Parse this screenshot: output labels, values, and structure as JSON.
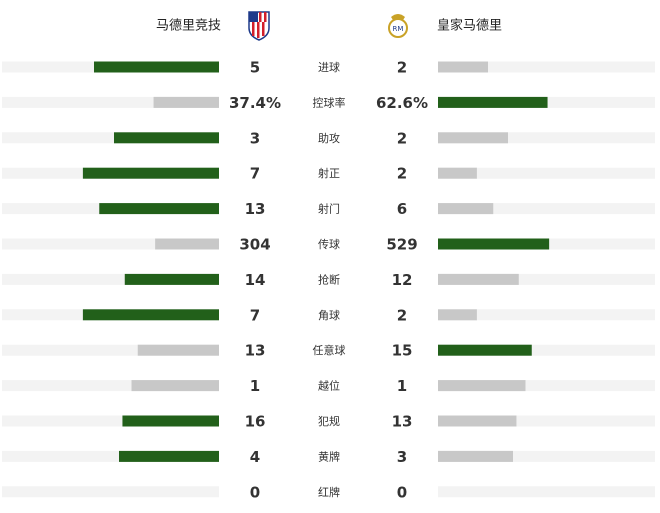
{
  "home": "马德里竞技",
  "away": "皇家马德里",
  "rows": [
    {
      "label": "进球",
      "home": 5,
      "away": 2
    },
    {
      "label": "控球率",
      "home": 37.4,
      "away": 62.6,
      "home_label": "37.4%",
      "away_label": "62.6%"
    },
    {
      "label": "助攻",
      "home": 3,
      "away": 2
    },
    {
      "label": "射正",
      "home": 7,
      "away": 2
    },
    {
      "label": "射门",
      "home": 13,
      "away": 6
    },
    {
      "label": "传球",
      "home": 304,
      "away": 529
    },
    {
      "label": "抢断",
      "home": 14,
      "away": 12
    },
    {
      "label": "角球",
      "home": 7,
      "away": 2
    },
    {
      "label": "任意球",
      "home": 13,
      "away": 15
    },
    {
      "label": "越位",
      "home": 1,
      "away": 1
    },
    {
      "label": "犯规",
      "home": 16,
      "away": 13
    },
    {
      "label": "黄牌",
      "home": 4,
      "away": 3
    },
    {
      "label": "红牌",
      "home": 0,
      "away": 0
    }
  ]
}
